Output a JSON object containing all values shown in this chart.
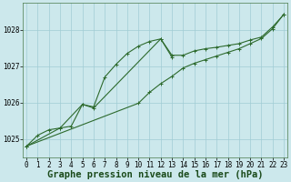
{
  "x": [
    0,
    1,
    2,
    3,
    4,
    5,
    6,
    7,
    8,
    9,
    10,
    11,
    12,
    13,
    14,
    15,
    16,
    17,
    18,
    19,
    20,
    21,
    22,
    23
  ],
  "line1": [
    1024.8,
    1025.1,
    1025.25,
    1025.3,
    1025.35,
    1025.95,
    1025.88,
    1026.7,
    1027.05,
    1027.35,
    1027.55,
    1027.68,
    1027.75,
    1027.3,
    1027.3,
    1027.42,
    1027.48,
    1027.52,
    1027.57,
    1027.62,
    1027.72,
    1027.8,
    1028.08,
    1028.42
  ],
  "line2_x": [
    0,
    3,
    5,
    6,
    12,
    13
  ],
  "line2_y": [
    1024.8,
    1025.3,
    1025.95,
    1025.85,
    1027.75,
    1027.25
  ],
  "line3_x": [
    0,
    10,
    11,
    12,
    13,
    14,
    15,
    16,
    17,
    18,
    19,
    20,
    21,
    22,
    23
  ],
  "line3_y": [
    1024.8,
    1025.98,
    1026.28,
    1026.52,
    1026.72,
    1026.95,
    1027.08,
    1027.18,
    1027.28,
    1027.38,
    1027.48,
    1027.62,
    1027.76,
    1028.03,
    1028.43
  ],
  "bg_color": "#cce8ec",
  "line_color": "#2d6a2d",
  "grid_color": "#a0ccd4",
  "xlabel": "Graphe pression niveau de la mer (hPa)",
  "ylim": [
    1024.5,
    1028.75
  ],
  "xlim": [
    -0.3,
    23.3
  ],
  "xlabel_fontsize": 7.5,
  "tick_fontsize": 5.5,
  "yticks": [
    1025,
    1026,
    1027,
    1028
  ]
}
